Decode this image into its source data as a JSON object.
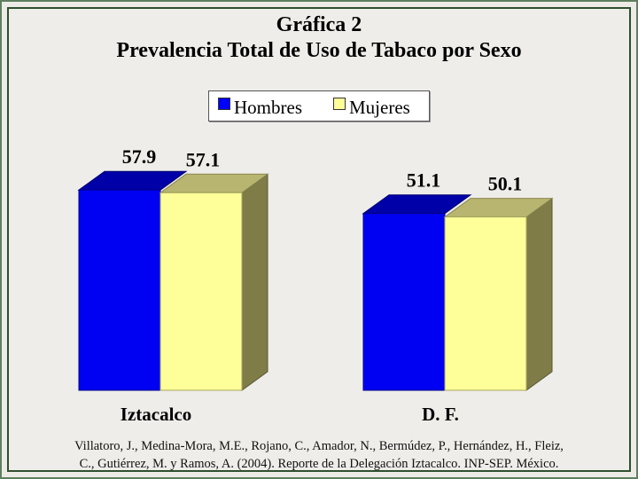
{
  "title": {
    "line1": "Gráfica 2",
    "line2": "Prevalencia Total de Uso de Tabaco por Sexo"
  },
  "legend": {
    "hombres": "Hombres",
    "mujeres": "Mujeres"
  },
  "colors": {
    "hombres_front": "#0000f2",
    "hombres_top": "#0000a8",
    "mujeres_front": "#ffff99",
    "mujeres_top": "#b7b570",
    "side": "#7f7c48",
    "legend_hombres": "#0000ff",
    "legend_mujeres": "#ffff99"
  },
  "chart_data": {
    "type": "bar",
    "title": "Gráfica 2 Prevalencia Total de Uso de Tabaco por Sexo",
    "categories": [
      "Iztacalco",
      "D. F."
    ],
    "series": [
      {
        "name": "Hombres",
        "values": [
          57.9,
          51.1
        ]
      },
      {
        "name": "Mujeres",
        "values": [
          57.1,
          50.1
        ]
      }
    ],
    "value_labels": [
      [
        "57.9",
        "51.1"
      ],
      [
        "57.1",
        "50.1"
      ]
    ],
    "ylim": [
      0,
      58
    ],
    "grid": false,
    "legend_position": "top"
  },
  "source": {
    "line1": "Villatoro, J., Medina-Mora, M.E., Rojano, C., Amador, N., Bermúdez, P., Hernández, H., Fleiz,",
    "line2": "C., Gutiérrez, M. y Ramos, A. (2004). Reporte de la Delegación Iztacalco. INP-SEP. México."
  }
}
